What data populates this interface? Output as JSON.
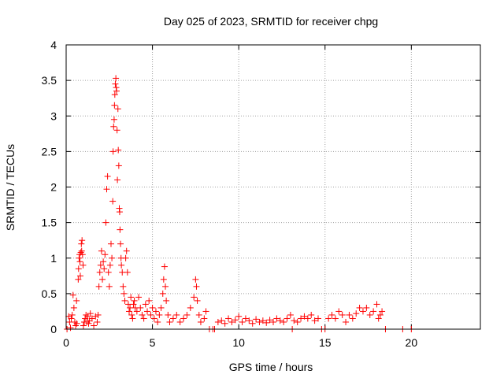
{
  "chart_data": {
    "type": "scatter",
    "title": "Day 025 of 2023, SRMTID for receiver chpg",
    "xlabel": "GPS time / hours",
    "ylabel": "SRMTID / TECUs",
    "xlim": [
      0,
      24
    ],
    "ylim": [
      0,
      4
    ],
    "xticks": [
      0,
      5,
      10,
      15,
      20
    ],
    "yticks": [
      0,
      0.5,
      1,
      1.5,
      2,
      2.5,
      3,
      3.5,
      4
    ],
    "xtick_labels": [
      "0",
      "5",
      "10",
      "15",
      "20"
    ],
    "ytick_labels": [
      "0",
      "0.5",
      "1",
      "1.5",
      "2",
      "2.5",
      "3",
      "3.5",
      "4"
    ],
    "grid": true,
    "marker": "+",
    "color": "#ff0000",
    "series": [
      {
        "name": "SRMTID",
        "points": [
          [
            0.05,
            0.0
          ],
          [
            0.15,
            0.18
          ],
          [
            0.2,
            0.1
          ],
          [
            0.25,
            0.02
          ],
          [
            0.3,
            0.15
          ],
          [
            0.35,
            0.2
          ],
          [
            0.4,
            0.48
          ],
          [
            0.45,
            0.3
          ],
          [
            0.5,
            0.1
          ],
          [
            0.55,
            0.05
          ],
          [
            0.6,
            0.4
          ],
          [
            0.62,
            0.08
          ],
          [
            0.7,
            0.7
          ],
          [
            0.72,
            0.85
          ],
          [
            0.75,
            1.0
          ],
          [
            0.78,
            1.05
          ],
          [
            0.8,
            0.95
          ],
          [
            0.82,
            0.75
          ],
          [
            0.85,
            1.08
          ],
          [
            0.88,
            1.2
          ],
          [
            0.9,
            1.1
          ],
          [
            0.92,
            1.25
          ],
          [
            0.95,
            1.05
          ],
          [
            0.98,
            0.9
          ],
          [
            1.0,
            0.05
          ],
          [
            1.05,
            0.1
          ],
          [
            1.1,
            0.15
          ],
          [
            1.15,
            0.2
          ],
          [
            1.2,
            0.1
          ],
          [
            1.25,
            0.18
          ],
          [
            1.3,
            0.08
          ],
          [
            1.35,
            0.12
          ],
          [
            1.4,
            0.22
          ],
          [
            1.5,
            0.15
          ],
          [
            1.6,
            0.05
          ],
          [
            1.7,
            0.18
          ],
          [
            1.8,
            0.1
          ],
          [
            1.85,
            0.2
          ],
          [
            1.9,
            0.6
          ],
          [
            1.95,
            0.8
          ],
          [
            2.0,
            0.9
          ],
          [
            2.05,
            1.1
          ],
          [
            2.1,
            0.7
          ],
          [
            2.15,
            0.95
          ],
          [
            2.2,
            0.85
          ],
          [
            2.25,
            1.05
          ],
          [
            2.3,
            1.5
          ],
          [
            2.35,
            1.97
          ],
          [
            2.4,
            2.15
          ],
          [
            2.45,
            0.8
          ],
          [
            2.5,
            0.6
          ],
          [
            2.55,
            0.9
          ],
          [
            2.6,
            1.2
          ],
          [
            2.65,
            1.0
          ],
          [
            2.7,
            1.8
          ],
          [
            2.72,
            2.5
          ],
          [
            2.75,
            2.85
          ],
          [
            2.78,
            2.95
          ],
          [
            2.8,
            3.15
          ],
          [
            2.82,
            3.3
          ],
          [
            2.85,
            3.45
          ],
          [
            2.88,
            3.53
          ],
          [
            2.9,
            3.4
          ],
          [
            2.92,
            3.35
          ],
          [
            2.95,
            2.8
          ],
          [
            2.97,
            2.1
          ],
          [
            3.0,
            3.1
          ],
          [
            3.02,
            2.52
          ],
          [
            3.05,
            2.3
          ],
          [
            3.08,
            1.7
          ],
          [
            3.1,
            1.65
          ],
          [
            3.12,
            1.4
          ],
          [
            3.15,
            1.2
          ],
          [
            3.18,
            1.0
          ],
          [
            3.2,
            0.9
          ],
          [
            3.25,
            0.8
          ],
          [
            3.3,
            0.6
          ],
          [
            3.35,
            0.5
          ],
          [
            3.4,
            0.4
          ],
          [
            3.45,
            1.0
          ],
          [
            3.5,
            1.1
          ],
          [
            3.55,
            0.8
          ],
          [
            3.6,
            0.35
          ],
          [
            3.65,
            0.25
          ],
          [
            3.7,
            0.3
          ],
          [
            3.75,
            0.45
          ],
          [
            3.8,
            0.2
          ],
          [
            3.85,
            0.15
          ],
          [
            3.9,
            0.35
          ],
          [
            3.95,
            0.4
          ],
          [
            4.0,
            0.3
          ],
          [
            4.1,
            0.25
          ],
          [
            4.2,
            0.45
          ],
          [
            4.3,
            0.3
          ],
          [
            4.4,
            0.2
          ],
          [
            4.5,
            0.15
          ],
          [
            4.6,
            0.35
          ],
          [
            4.7,
            0.25
          ],
          [
            4.8,
            0.4
          ],
          [
            4.9,
            0.2
          ],
          [
            5.0,
            0.3
          ],
          [
            5.1,
            0.15
          ],
          [
            5.2,
            0.25
          ],
          [
            5.3,
            0.1
          ],
          [
            5.4,
            0.2
          ],
          [
            5.5,
            0.3
          ],
          [
            5.6,
            0.5
          ],
          [
            5.65,
            0.7
          ],
          [
            5.7,
            0.88
          ],
          [
            5.75,
            0.6
          ],
          [
            5.8,
            0.4
          ],
          [
            5.9,
            0.2
          ],
          [
            6.0,
            0.1
          ],
          [
            6.2,
            0.15
          ],
          [
            6.4,
            0.2
          ],
          [
            6.6,
            0.1
          ],
          [
            6.8,
            0.15
          ],
          [
            7.0,
            0.2
          ],
          [
            7.2,
            0.3
          ],
          [
            7.4,
            0.45
          ],
          [
            7.5,
            0.7
          ],
          [
            7.55,
            0.6
          ],
          [
            7.6,
            0.4
          ],
          [
            7.7,
            0.2
          ],
          [
            7.8,
            0.1
          ],
          [
            8.0,
            0.15
          ],
          [
            8.1,
            0.25
          ],
          [
            8.3,
            0.0
          ],
          [
            8.5,
            0.0
          ],
          [
            8.6,
            0.0
          ],
          [
            8.8,
            0.1
          ],
          [
            9.0,
            0.12
          ],
          [
            9.2,
            0.08
          ],
          [
            9.4,
            0.15
          ],
          [
            9.6,
            0.1
          ],
          [
            9.8,
            0.13
          ],
          [
            10.0,
            0.18
          ],
          [
            10.2,
            0.1
          ],
          [
            10.4,
            0.15
          ],
          [
            10.6,
            0.12
          ],
          [
            10.8,
            0.08
          ],
          [
            11.0,
            0.14
          ],
          [
            11.2,
            0.1
          ],
          [
            11.4,
            0.12
          ],
          [
            11.6,
            0.09
          ],
          [
            11.8,
            0.13
          ],
          [
            12.0,
            0.1
          ],
          [
            12.2,
            0.15
          ],
          [
            12.4,
            0.12
          ],
          [
            12.6,
            0.1
          ],
          [
            12.8,
            0.15
          ],
          [
            13.0,
            0.2
          ],
          [
            13.1,
            0.0
          ],
          [
            13.2,
            0.12
          ],
          [
            13.4,
            0.1
          ],
          [
            13.6,
            0.15
          ],
          [
            13.8,
            0.18
          ],
          [
            14.0,
            0.15
          ],
          [
            14.2,
            0.2
          ],
          [
            14.4,
            0.12
          ],
          [
            14.6,
            0.15
          ],
          [
            14.8,
            0.0
          ],
          [
            15.0,
            0.0
          ],
          [
            15.2,
            0.15
          ],
          [
            15.4,
            0.2
          ],
          [
            15.6,
            0.15
          ],
          [
            15.8,
            0.25
          ],
          [
            16.0,
            0.2
          ],
          [
            16.2,
            0.1
          ],
          [
            16.4,
            0.2
          ],
          [
            16.6,
            0.15
          ],
          [
            16.8,
            0.22
          ],
          [
            17.0,
            0.3
          ],
          [
            17.2,
            0.25
          ],
          [
            17.4,
            0.3
          ],
          [
            17.6,
            0.2
          ],
          [
            17.8,
            0.25
          ],
          [
            18.0,
            0.35
          ],
          [
            18.1,
            0.15
          ],
          [
            18.2,
            0.2
          ],
          [
            18.3,
            0.25
          ],
          [
            18.5,
            0.0
          ],
          [
            19.5,
            0.0
          ],
          [
            20.0,
            0.0
          ]
        ]
      }
    ]
  }
}
